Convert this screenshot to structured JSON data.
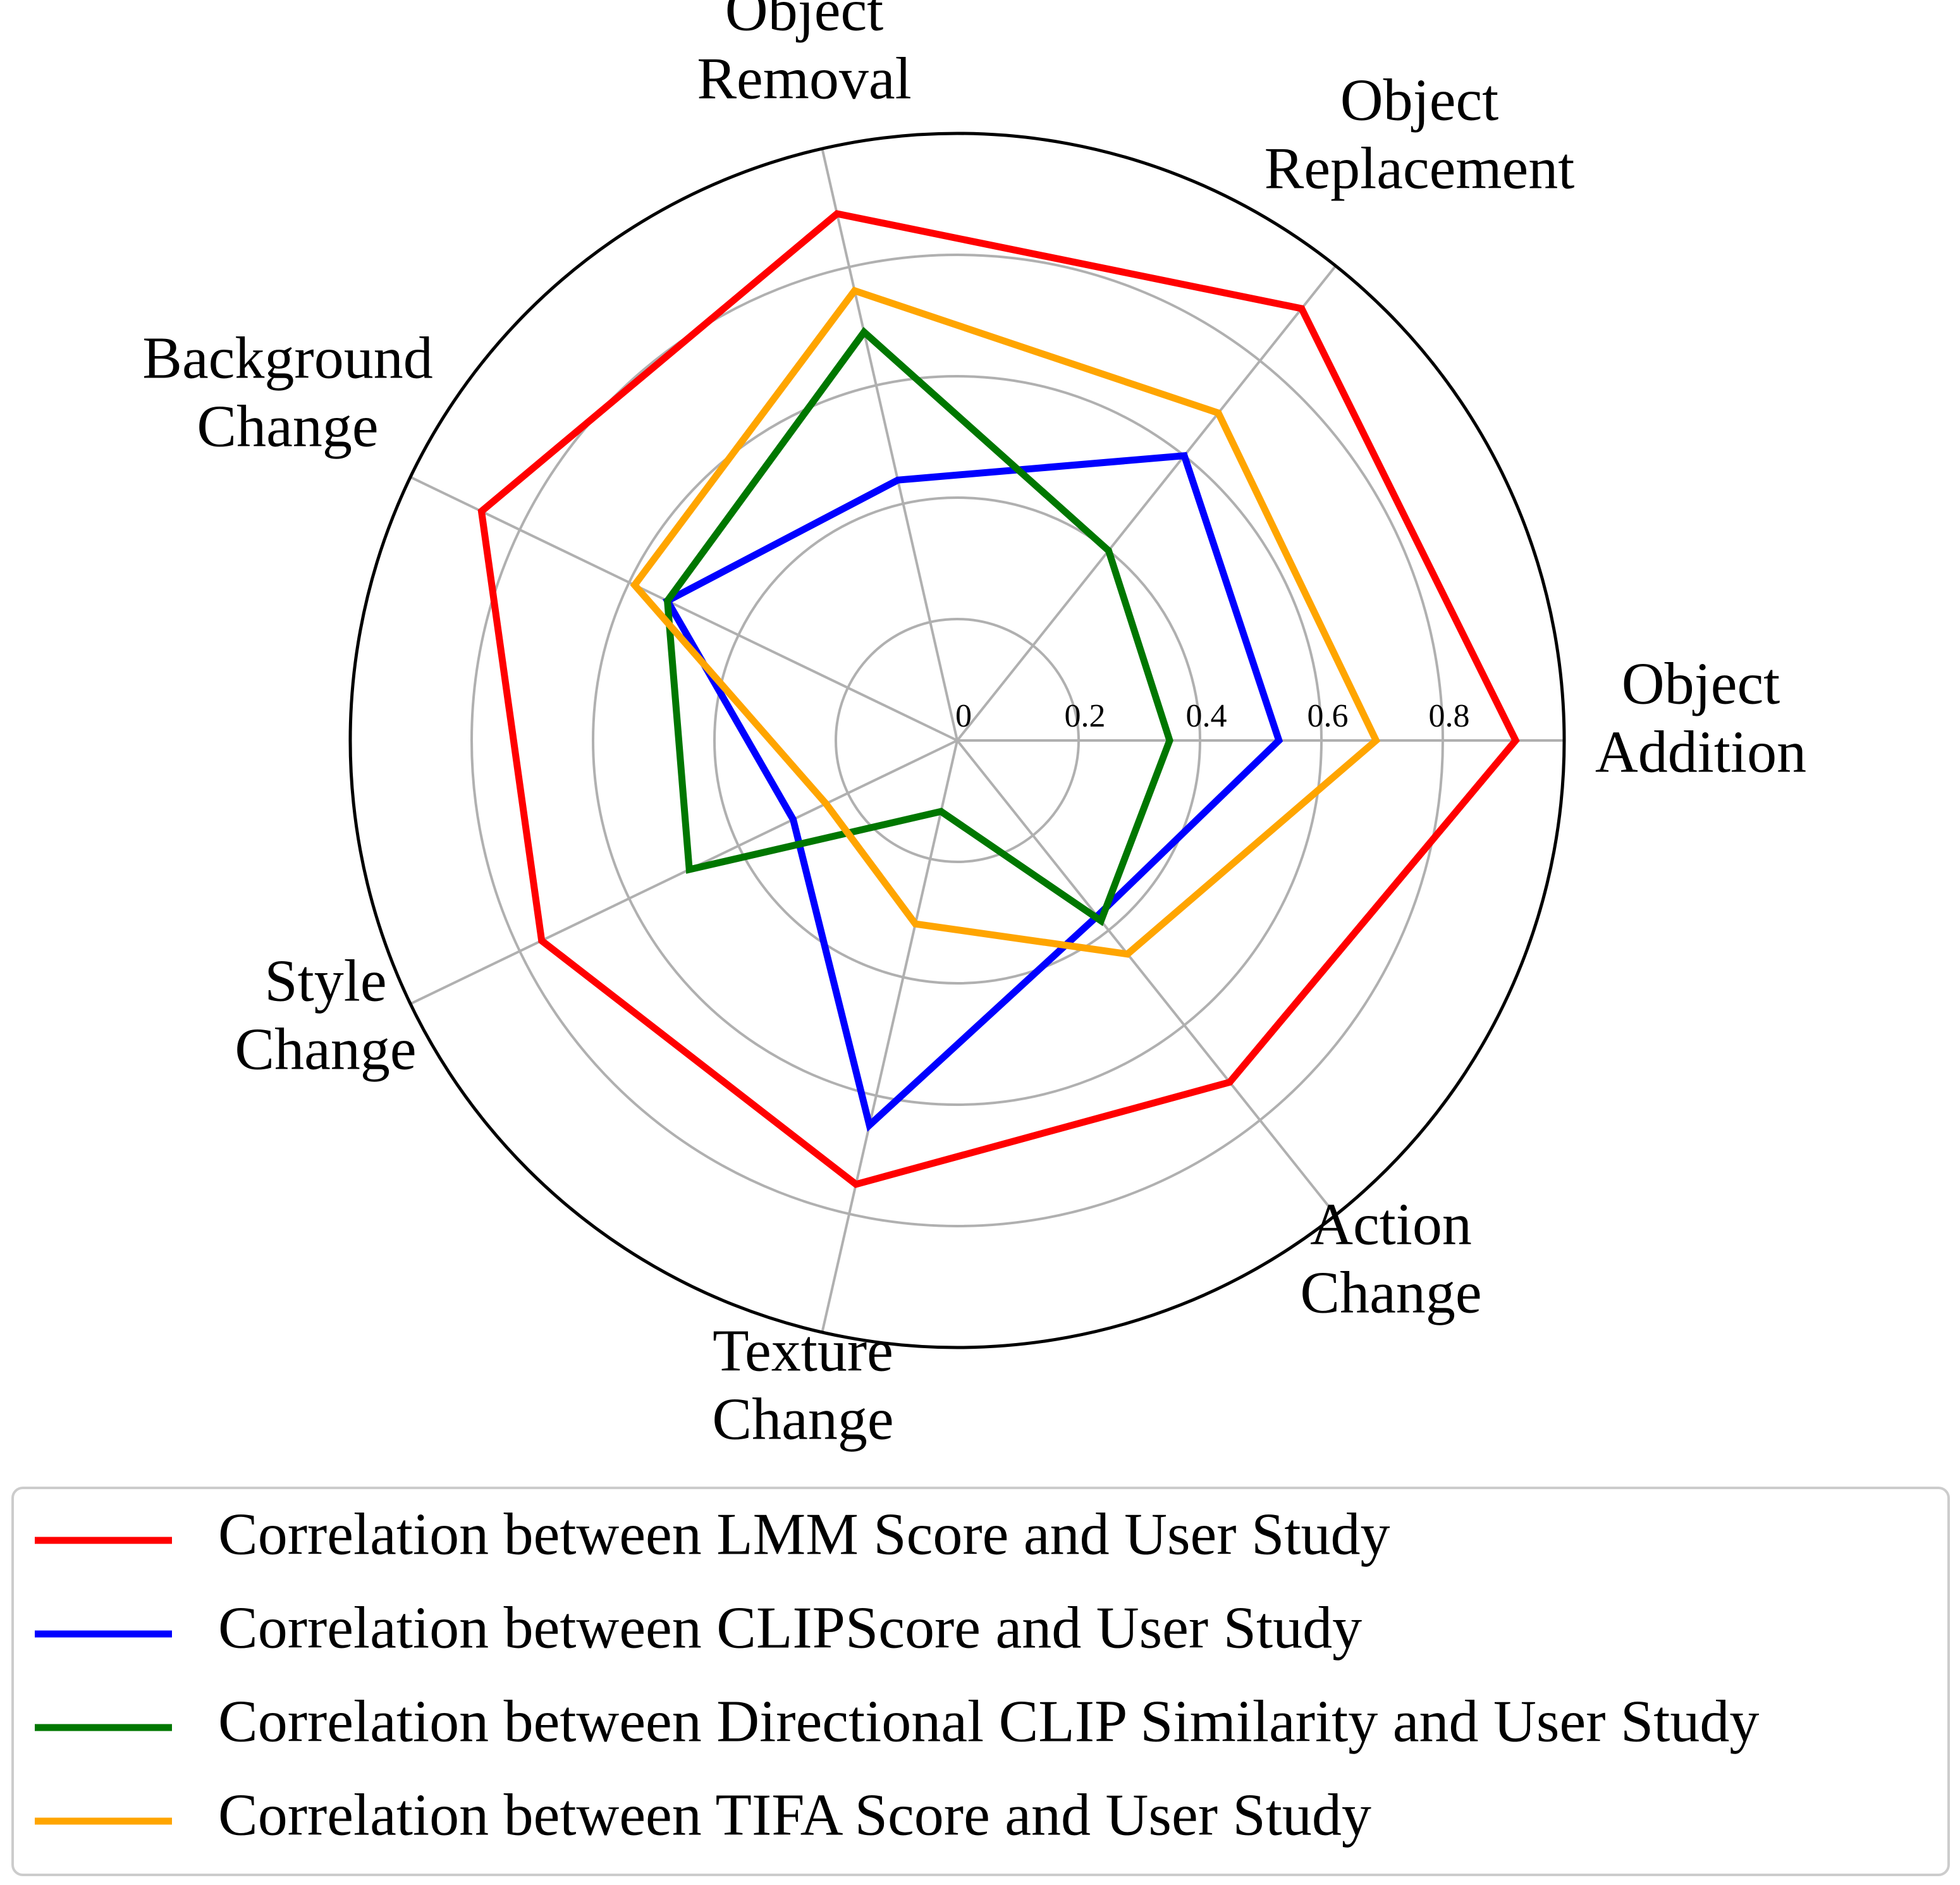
{
  "chart_data": {
    "type": "radar",
    "title": "",
    "axes": [
      "Object Addition",
      "Object Replacement",
      "Object Removal",
      "Background Change",
      "Style Change",
      "Texture Change",
      "Action Change"
    ],
    "axis_label_lines": [
      [
        "Object",
        "Addition"
      ],
      [
        "Object",
        "Replacement"
      ],
      [
        "Object",
        "Removal"
      ],
      [
        "Background",
        "Change"
      ],
      [
        "Style",
        "Change"
      ],
      [
        "Texture",
        "Change"
      ],
      [
        "Action",
        "Change"
      ]
    ],
    "rmax": 1.0,
    "radial_ticks": [
      0,
      0.2,
      0.4,
      0.6,
      0.8
    ],
    "radial_tick_labels": [
      "0",
      "0.2",
      "0.4",
      "0.6",
      "0.8"
    ],
    "grid": true,
    "legend_position": "bottom",
    "series": [
      {
        "name": "Correlation between LMM Score and User Study",
        "color": "#ff0000",
        "values": [
          0.92,
          0.91,
          0.89,
          0.87,
          0.76,
          0.75,
          0.72
        ]
      },
      {
        "name": "Correlation between CLIPScore and User Study",
        "color": "#0000ff",
        "values": [
          0.53,
          0.6,
          0.44,
          0.53,
          0.3,
          0.65,
          0.37
        ]
      },
      {
        "name": "Correlation between Directional CLIP Similarity and User Study",
        "color": "#007700",
        "values": [
          0.35,
          0.4,
          0.69,
          0.53,
          0.49,
          0.12,
          0.38
        ]
      },
      {
        "name": "Correlation between TIFA Score and User Study",
        "color": "#ffa500",
        "values": [
          0.69,
          0.69,
          0.76,
          0.59,
          0.24,
          0.31,
          0.45
        ]
      }
    ]
  }
}
